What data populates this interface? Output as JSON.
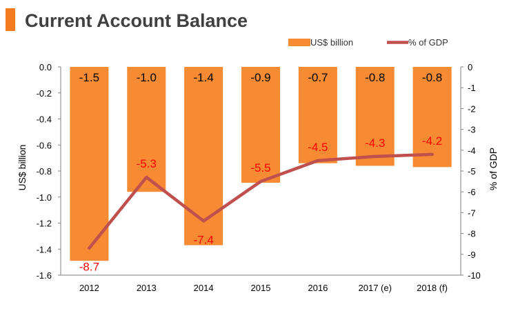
{
  "chart_data": {
    "type": "bar",
    "title": "Current Account Balance",
    "categories": [
      "2012",
      "2013",
      "2014",
      "2015",
      "2016",
      "2017 (e)",
      "2018 (f)"
    ],
    "series": [
      {
        "name": "US$ billion",
        "type": "bar",
        "axis": "left",
        "values": [
          -1.49,
          -0.96,
          -1.37,
          -0.89,
          -0.74,
          -0.76,
          -0.77
        ],
        "labels": [
          "-1.5",
          "-1.0",
          "-1.4",
          "-0.9",
          "-0.7",
          "-0.8",
          "-0.8"
        ]
      },
      {
        "name": "% of GDP",
        "type": "line",
        "axis": "right",
        "values": [
          -8.7,
          -5.3,
          -7.4,
          -5.5,
          -4.5,
          -4.3,
          -4.2
        ],
        "labels": [
          "-8.7",
          "-5.3",
          "-7.4",
          "-5.5",
          "-4.5",
          "-4.3",
          "-4.2"
        ]
      }
    ],
    "ylabel": "US$ billion",
    "y2label": "% of GDP",
    "ylim": [
      -1.6,
      0
    ],
    "y2lim": [
      -10,
      0
    ],
    "yticks": [
      "0.0",
      "-0.2",
      "-0.4",
      "-0.6",
      "-0.8",
      "-1.0",
      "-1.2",
      "-1.4",
      "-1.6"
    ],
    "y2ticks": [
      "0",
      "-1",
      "-2",
      "-3",
      "-4",
      "-5",
      "-6",
      "-7",
      "-8",
      "-9",
      "-10"
    ],
    "legend_position": "top-right",
    "grid": false,
    "colors": {
      "accent": "#f47b20",
      "bar": "#f68b33",
      "line": "#c0504d",
      "line_label": "#ff0000",
      "bar_label": "#000000",
      "title": "#404040",
      "axis": "#7f7f7f"
    }
  }
}
